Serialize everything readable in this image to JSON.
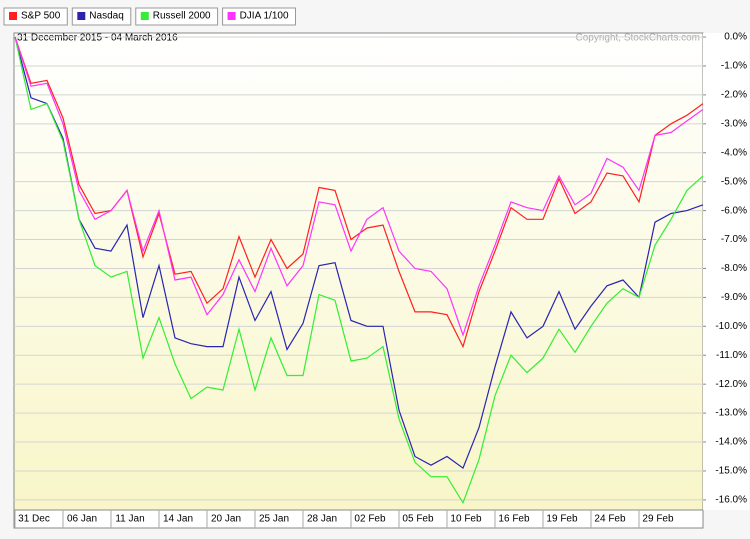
{
  "chart_data": {
    "type": "line",
    "subtitle": "31 December 2015 - 04 March 2016",
    "annotation": "Copyright, StockCharts.com",
    "categories": [
      "31 Dec",
      null,
      null,
      "06 Jan",
      null,
      null,
      "11 Jan",
      null,
      null,
      "14 Jan",
      null,
      null,
      "20 Jan",
      null,
      null,
      "25 Jan",
      null,
      null,
      "28 Jan",
      null,
      null,
      "02 Feb",
      null,
      null,
      "05 Feb",
      null,
      null,
      "10 Feb",
      null,
      null,
      "16 Feb",
      null,
      null,
      "19 Feb",
      null,
      null,
      "24 Feb",
      null,
      null,
      "29 Feb",
      null,
      null,
      null,
      null
    ],
    "series": [
      {
        "name": "S&P 500",
        "color": "#ff2020",
        "values": [
          0,
          -1.6,
          -1.5,
          -2.8,
          -5.1,
          -6.1,
          -6.0,
          -5.3,
          -7.6,
          -6.1,
          -8.2,
          -8.1,
          -9.2,
          -8.7,
          -6.9,
          -8.3,
          -7.0,
          -8.0,
          -7.5,
          -5.2,
          -5.3,
          -7.0,
          -6.6,
          -6.5,
          -8.1,
          -9.5,
          -9.5,
          -9.6,
          -10.7,
          -8.8,
          -7.4,
          -5.9,
          -6.3,
          -6.3,
          -4.9,
          -6.1,
          -5.7,
          -4.7,
          -4.8,
          -5.7,
          -3.4,
          -3.0,
          -2.7,
          -2.3
        ]
      },
      {
        "name": "Nasdaq",
        "color": "#2a24b0",
        "values": [
          0,
          -2.1,
          -2.3,
          -3.5,
          -6.3,
          -7.3,
          -7.4,
          -6.5,
          -9.7,
          -7.9,
          -10.4,
          -10.6,
          -10.7,
          -10.7,
          -8.3,
          -9.8,
          -8.8,
          -10.8,
          -9.9,
          -7.9,
          -7.8,
          -9.8,
          -10.0,
          -10.0,
          -12.9,
          -14.5,
          -14.8,
          -14.5,
          -14.9,
          -13.5,
          -11.4,
          -9.5,
          -10.4,
          -10.0,
          -8.8,
          -10.1,
          -9.3,
          -8.6,
          -8.4,
          -9.0,
          -6.4,
          -6.1,
          -6.0,
          -5.8
        ]
      },
      {
        "name": "Russell 2000",
        "color": "#33ee33",
        "values": [
          0,
          -2.5,
          -2.3,
          -3.6,
          -6.3,
          -7.9,
          -8.3,
          -8.1,
          -11.1,
          -9.7,
          -11.3,
          -12.5,
          -12.1,
          -12.2,
          -10.1,
          -12.2,
          -10.4,
          -11.7,
          -11.7,
          -8.9,
          -9.1,
          -11.2,
          -11.1,
          -10.7,
          -13.2,
          -14.7,
          -15.2,
          -15.2,
          -16.1,
          -14.6,
          -12.4,
          -11.0,
          -11.6,
          -11.1,
          -10.1,
          -10.9,
          -10.0,
          -9.2,
          -8.7,
          -9.0,
          -7.2,
          -6.3,
          -5.3,
          -4.8
        ]
      },
      {
        "name": "DJIA 1/100",
        "color": "#ff33ff",
        "values": [
          0,
          -1.7,
          -1.6,
          -3.0,
          -5.3,
          -6.3,
          -6.0,
          -5.3,
          -7.4,
          -6.0,
          -8.4,
          -8.3,
          -9.6,
          -8.9,
          -7.7,
          -8.8,
          -7.3,
          -8.6,
          -7.9,
          -5.7,
          -5.8,
          -7.4,
          -6.3,
          -5.9,
          -7.4,
          -8.0,
          -8.1,
          -8.7,
          -10.3,
          -8.6,
          -7.2,
          -5.7,
          -5.9,
          -6.0,
          -4.8,
          -5.8,
          -5.4,
          -4.2,
          -4.5,
          -5.3,
          -3.4,
          -3.3,
          -2.9,
          -2.5
        ]
      }
    ],
    "ylim": [
      -16.35,
      0.14
    ],
    "yticks": [
      {
        "value": 0,
        "label": "0.0%"
      },
      {
        "value": -1,
        "label": "-1.0%"
      },
      {
        "value": -2,
        "label": "-2.0%"
      },
      {
        "value": -3,
        "label": "-3.0%"
      },
      {
        "value": -4,
        "label": "-4.0%"
      },
      {
        "value": -5,
        "label": "-5.0%"
      },
      {
        "value": -6,
        "label": "-6.0%"
      },
      {
        "value": -7,
        "label": "-7.0%"
      },
      {
        "value": -8,
        "label": "-8.0%"
      },
      {
        "value": -9,
        "label": "-9.0%"
      },
      {
        "value": -10,
        "label": "-10.0%"
      },
      {
        "value": -11,
        "label": "-11.0%"
      },
      {
        "value": -12,
        "label": "-12.0%"
      },
      {
        "value": -13,
        "label": "-13.0%"
      },
      {
        "value": -14,
        "label": "-14.0%"
      },
      {
        "value": -15,
        "label": "-15.0%"
      },
      {
        "value": -16,
        "label": "-16.0%"
      }
    ],
    "grid": true
  }
}
